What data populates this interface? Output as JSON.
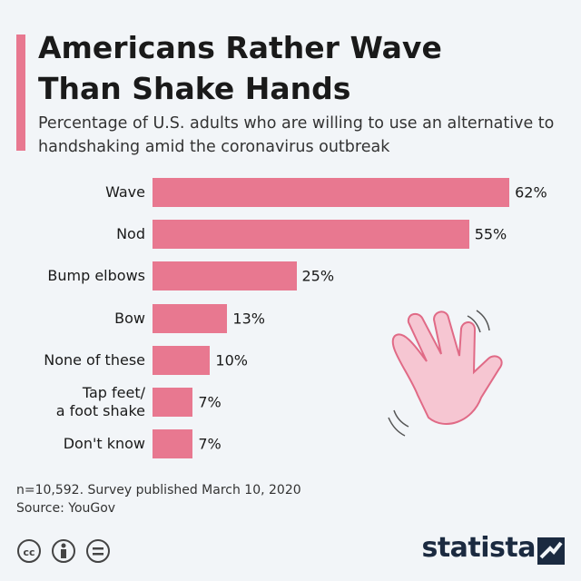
{
  "chart_data": {
    "type": "bar",
    "orientation": "horizontal",
    "title": "Americans Rather Wave Than Shake Hands",
    "subtitle": "Percentage of U.S. adults who are willing to use an alternative to handshaking amid the coronavirus outbreak",
    "categories": [
      "Wave",
      "Nod",
      "Bump elbows",
      "Bow",
      "None of these",
      "Tap feet/\na foot shake",
      "Don't know"
    ],
    "values": [
      62,
      55,
      25,
      13,
      10,
      7,
      7
    ],
    "value_labels": [
      "62%",
      "55%",
      "25%",
      "13%",
      "10%",
      "7%",
      "7%"
    ],
    "color": "#e87890",
    "note": "n=10,592. Survey published March 10, 2020",
    "source": "Source: YouGov",
    "logo": "statista"
  }
}
